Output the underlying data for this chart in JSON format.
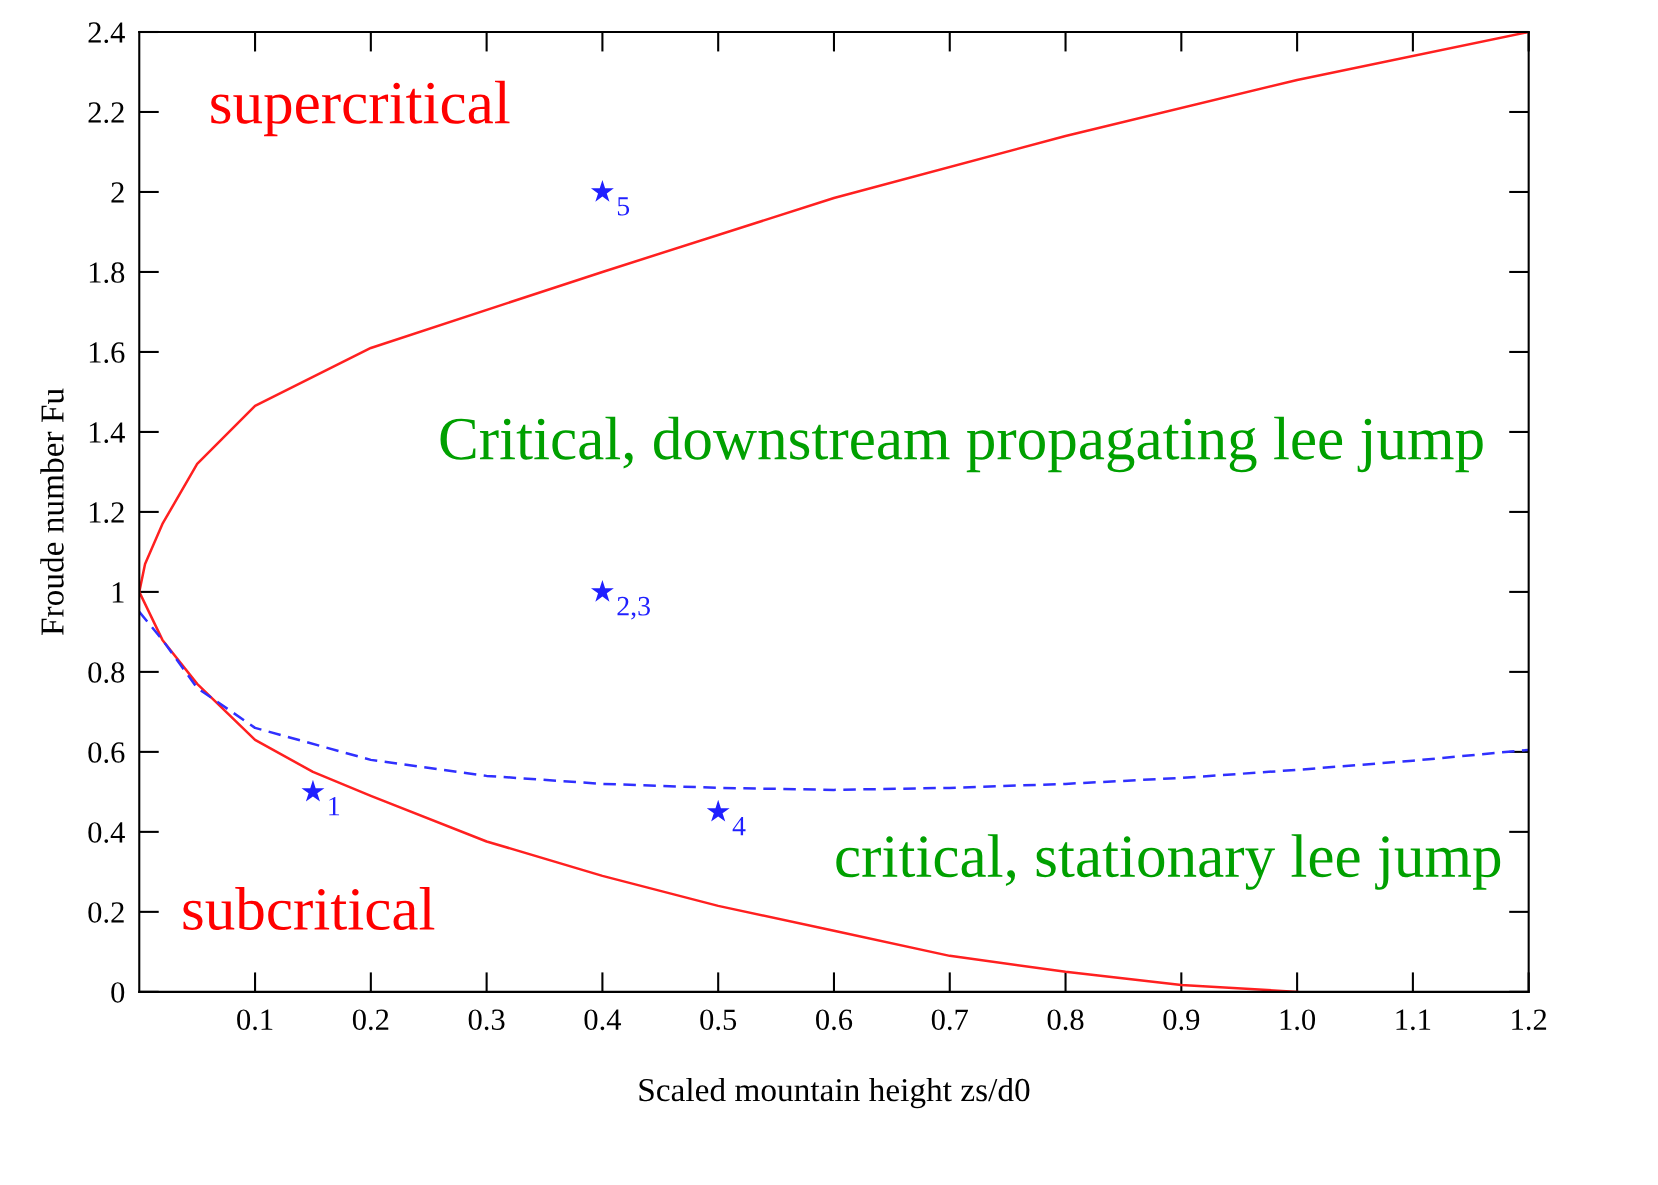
{
  "chart_data": {
    "type": "line",
    "xlabel": "Scaled mountain height zs/d0",
    "ylabel": "Froude number Fu",
    "xlim": [
      0,
      1.2
    ],
    "ylim": [
      0,
      2.4
    ],
    "xticks": [
      0.1,
      0.2,
      0.3,
      0.4,
      0.5,
      0.6,
      0.7,
      0.8,
      0.9,
      {
        "value": 1.0,
        "label": "1.0"
      },
      1.1,
      1.2
    ],
    "yticks": [
      0,
      0.2,
      0.4,
      0.6,
      0.8,
      1,
      1.2,
      1.4,
      1.6,
      1.8,
      2,
      2.2,
      2.4
    ],
    "grid": false,
    "series": [
      {
        "color": "#ff2020",
        "line_style": "solid",
        "marker": "none",
        "x": [
          1.0,
          0.9,
          0.8,
          0.7,
          0.6,
          0.5,
          0.4,
          0.3,
          0.2,
          0.15,
          0.1,
          0.05,
          0.02,
          0,
          0.005,
          0.02,
          0.05,
          0.1,
          0.2,
          0.4,
          0.6,
          0.8,
          1.0,
          1.2
        ],
        "values": [
          0,
          0.017,
          0.05,
          0.09,
          0.153,
          0.215,
          0.29,
          0.376,
          0.49,
          0.55,
          0.63,
          0.77,
          0.88,
          1.0,
          1.07,
          1.17,
          1.32,
          1.465,
          1.61,
          1.8,
          1.985,
          2.14,
          2.28,
          2.4
        ]
      },
      {
        "color": "#3030ff",
        "line_style": "dashed",
        "marker": "none",
        "x": [
          0,
          0.02,
          0.05,
          0.1,
          0.2,
          0.3,
          0.4,
          0.5,
          0.6,
          0.7,
          0.8,
          0.9,
          1.0,
          1.1,
          1.2
        ],
        "values": [
          0.95,
          0.88,
          0.76,
          0.66,
          0.58,
          0.54,
          0.52,
          0.51,
          0.505,
          0.51,
          0.52,
          0.535,
          0.555,
          0.578,
          0.605
        ]
      },
      {
        "type": "scatter",
        "color": "#2020ff",
        "marker": "star",
        "x": [
          0.15,
          0.4,
          0.4,
          0.5
        ],
        "values": [
          0.5,
          1.0,
          2.0,
          0.45
        ]
      }
    ],
    "annotations": [
      {
        "text": "1",
        "x": 0.15,
        "y": 0.5
      },
      {
        "text": "2,3",
        "x": 0.4,
        "y": 1.0
      },
      {
        "text": "5",
        "x": 0.4,
        "y": 2.0
      },
      {
        "text": "4",
        "x": 0.5,
        "y": 0.45
      },
      "supercritical",
      "subcritical",
      "Critical, downstream propagating lee jump",
      "critical, stationary lee jump"
    ]
  }
}
